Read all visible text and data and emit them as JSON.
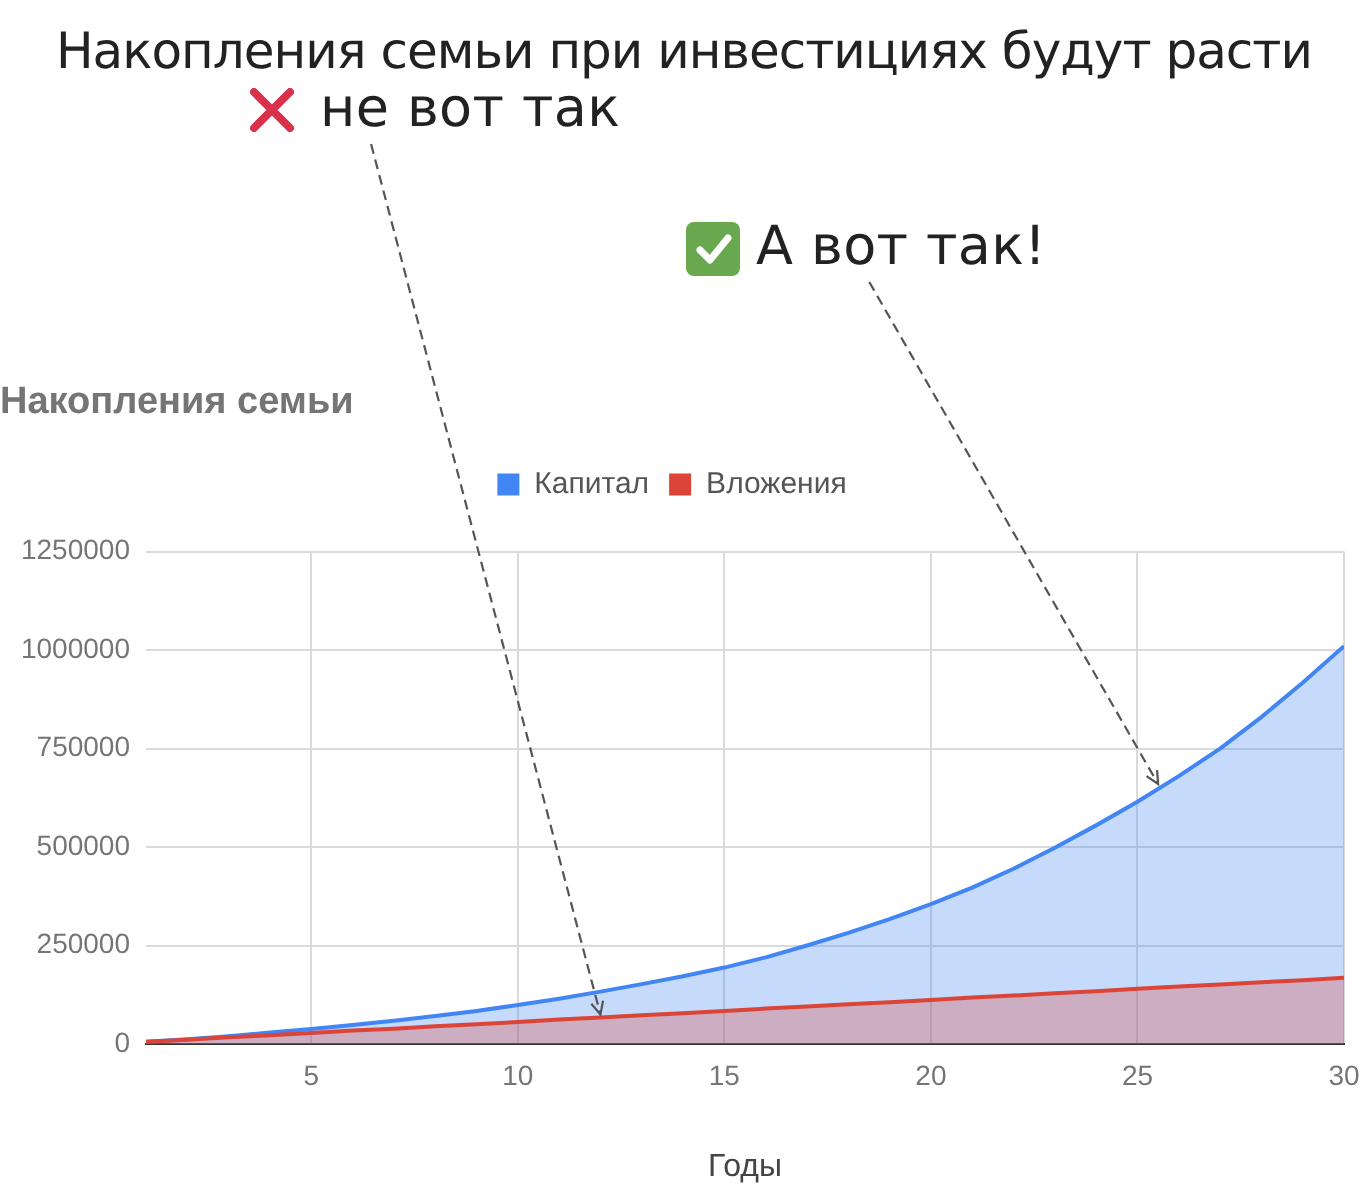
{
  "chart_data": {
    "type": "area",
    "title": "Накопления семьи",
    "xlabel": "Годы",
    "x": [
      1,
      2,
      3,
      4,
      5,
      6,
      7,
      8,
      9,
      10,
      11,
      12,
      13,
      14,
      15,
      16,
      17,
      18,
      19,
      20,
      21,
      22,
      23,
      24,
      25,
      26,
      27,
      28,
      29,
      30
    ],
    "series": [
      {
        "name": "Капитал",
        "color": "#4285f4",
        "values": [
          6000,
          12000,
          20000,
          29000,
          38000,
          48000,
          59000,
          71000,
          84000,
          99000,
          115000,
          133000,
          152000,
          172000,
          194000,
          220000,
          250000,
          282000,
          317000,
          355000,
          397000,
          445000,
          498000,
          555000,
          615000,
          680000,
          750000,
          830000,
          917000,
          1010000
        ]
      },
      {
        "name": "Вложения",
        "color": "#db4437",
        "values": [
          6000,
          11000,
          17000,
          22000,
          28000,
          34000,
          39000,
          45000,
          50000,
          56000,
          62000,
          67000,
          73000,
          78000,
          84000,
          90000,
          95000,
          101000,
          106000,
          112000,
          118000,
          123000,
          129000,
          134000,
          140000,
          146000,
          151000,
          157000,
          162000,
          168000
        ]
      }
    ],
    "xlim": [
      1,
      30
    ],
    "xticks": [
      5,
      10,
      15,
      20,
      25,
      30
    ],
    "ylim": [
      0,
      1250000
    ],
    "yticks": [
      0,
      250000,
      500000,
      750000,
      1000000,
      1250000
    ],
    "grid": true,
    "legend": "top",
    "marker": "none",
    "annotations": [
      "Накопления семьи при инвестициях будут расти",
      {
        "text": "не вот так",
        "x": 12,
        "y": 75000
      },
      {
        "text": "А вот так!",
        "x": 25.5,
        "y": 660000
      }
    ]
  }
}
